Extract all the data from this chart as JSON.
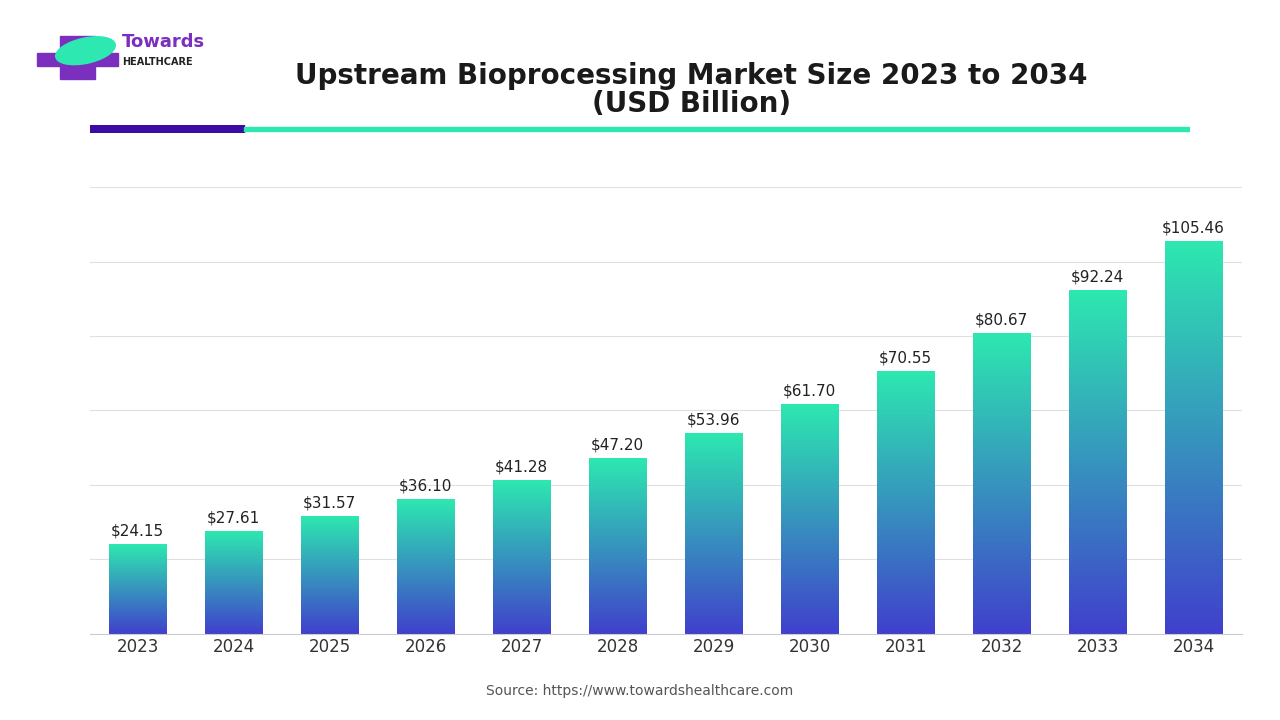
{
  "years": [
    2023,
    2024,
    2025,
    2026,
    2027,
    2028,
    2029,
    2030,
    2031,
    2032,
    2033,
    2034
  ],
  "values": [
    24.15,
    27.61,
    31.57,
    36.1,
    41.28,
    47.2,
    53.96,
    61.7,
    70.55,
    80.67,
    92.24,
    105.46
  ],
  "labels": [
    "$24.15",
    "$27.61",
    "$31.57",
    "$36.10",
    "$41.28",
    "$47.20",
    "$53.96",
    "$61.70",
    "$70.55",
    "$80.67",
    "$92.24",
    "$105.46"
  ],
  "title_line1": "Upstream Bioprocessing Market Size 2023 to 2034",
  "title_line2": "(USD Billion)",
  "source_text": "Source: https://www.towardshealthcare.com",
  "bar_color_top": "#2de8b0",
  "bar_color_bottom": "#4040cc",
  "background_color": "#ffffff",
  "grid_color": "#e0e0e0",
  "label_fontsize": 11,
  "title_fontsize": 20,
  "axis_tick_fontsize": 12,
  "ylim": [
    0,
    120
  ],
  "accent_bar_color": "#3a0ca3",
  "accent_line_color": "#2de8b0",
  "logo_purple": "#7B2FBE",
  "logo_teal": "#2de8b0"
}
